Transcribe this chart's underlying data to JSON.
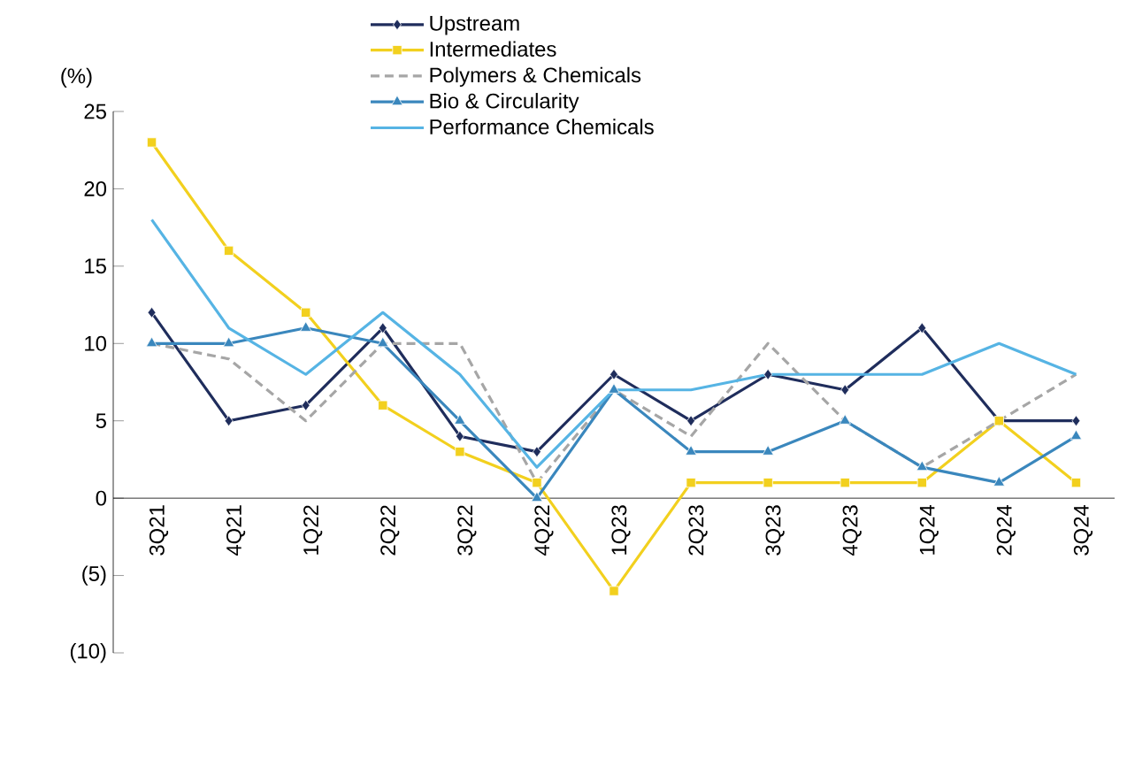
{
  "chart_data": {
    "type": "line",
    "ylabel": "(%)",
    "categories": [
      "3Q21",
      "4Q21",
      "1Q22",
      "2Q22",
      "3Q22",
      "4Q22",
      "1Q23",
      "2Q23",
      "3Q23",
      "4Q23",
      "1Q24",
      "2Q24",
      "3Q24"
    ],
    "series": [
      {
        "name": "Upstream",
        "color": "#1f2d5c",
        "marker": "diamond",
        "line_style": "solid",
        "values": [
          12,
          5,
          6,
          11,
          4,
          3,
          8,
          5,
          8,
          7,
          11,
          5,
          5
        ]
      },
      {
        "name": "Intermediates",
        "color": "#f2d01e",
        "marker": "square",
        "line_style": "solid",
        "values": [
          23,
          16,
          12,
          6,
          3,
          1,
          -6,
          1,
          1,
          1,
          1,
          5,
          1
        ]
      },
      {
        "name": "Polymers & Chemicals",
        "color": "#a6a6a6",
        "marker": "none",
        "line_style": "dashed",
        "values": [
          10,
          9,
          5,
          10,
          10,
          1,
          7,
          4,
          10,
          5,
          2,
          5,
          8
        ]
      },
      {
        "name": "Bio & Circularity",
        "color": "#3a87bd",
        "marker": "triangle",
        "line_style": "solid",
        "values": [
          10,
          10,
          11,
          10,
          5,
          0,
          7,
          3,
          3,
          5,
          2,
          1,
          4
        ]
      },
      {
        "name": "Performance Chemicals",
        "color": "#56b4e4",
        "marker": "none",
        "line_style": "solid",
        "values": [
          18,
          11,
          8,
          12,
          8,
          2,
          7,
          7,
          8,
          8,
          8,
          10,
          8
        ]
      }
    ],
    "ylim": [
      -10,
      25
    ],
    "yticks": [
      {
        "value": -10,
        "label": "(10)"
      },
      {
        "value": -5,
        "label": "(5)"
      },
      0,
      5,
      10,
      15,
      20,
      25
    ],
    "grid": false,
    "legend": "top"
  }
}
